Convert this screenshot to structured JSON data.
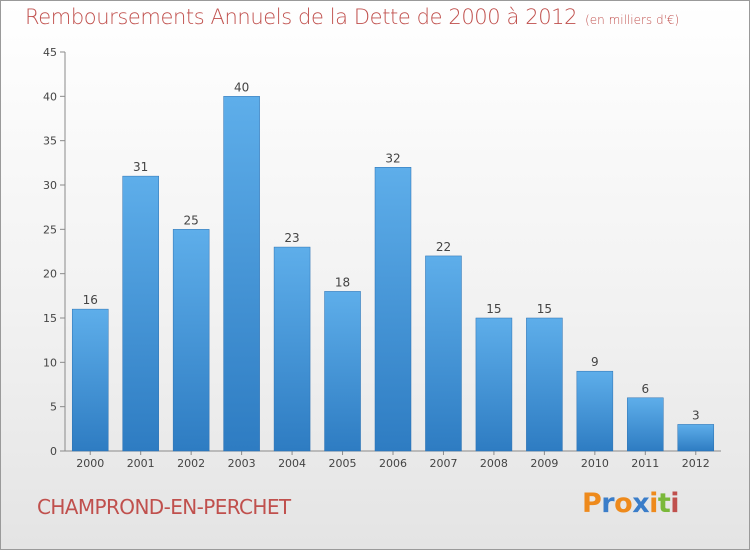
{
  "page": {
    "title": "Remboursements Annuels de la Dette de 2000 à 2012",
    "subtitle": "(en milliers d'€)",
    "town": "CHAMPROND-EN-PERCHET",
    "logo": "Proxiti",
    "logo_colors": [
      "#ee8a1c",
      "#3a7dc9",
      "#ee8a1c",
      "#3a7dc9",
      "#ee8a1c",
      "#7ab83a",
      "#c0504d"
    ]
  },
  "chart_data": {
    "type": "bar",
    "title": "Remboursements Annuels de la Dette de 2000 à 2012",
    "subtitle": "(en milliers d'€)",
    "categories": [
      "2000",
      "2001",
      "2002",
      "2003",
      "2004",
      "2005",
      "2006",
      "2007",
      "2008",
      "2009",
      "2010",
      "2011",
      "2012"
    ],
    "values": [
      16,
      31,
      25,
      40,
      23,
      18,
      32,
      22,
      15,
      15,
      9,
      6,
      3
    ],
    "ylim": [
      0,
      45
    ],
    "yticks": [
      0,
      5,
      10,
      15,
      20,
      25,
      30,
      35,
      40,
      45
    ],
    "xlabel": "",
    "ylabel": "",
    "grid": false,
    "bar_color": "#3b8fd8",
    "bar_color_light": "#5eaeea",
    "text_color": "#444444",
    "title_color": "#c0504d"
  }
}
